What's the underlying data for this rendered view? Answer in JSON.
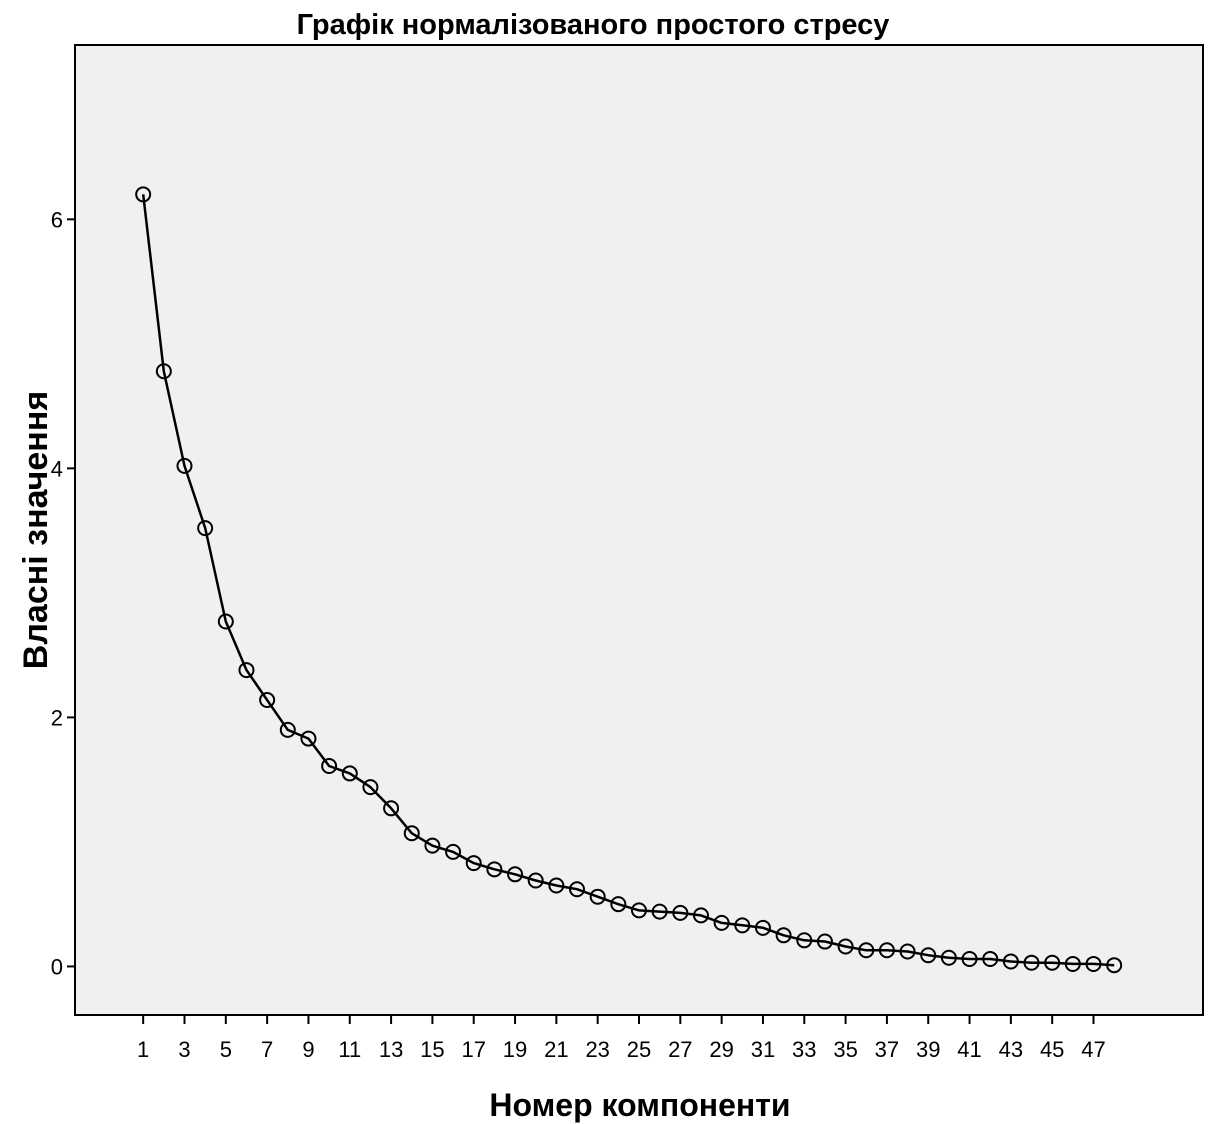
{
  "chart_data": {
    "type": "line",
    "title": "Графік нормалізованого простого стресу",
    "xlabel": "Номер компоненти",
    "ylabel": "Власні значення",
    "x_tick_labels": [
      "1",
      "3",
      "5",
      "7",
      "9",
      "11",
      "13",
      "15",
      "17",
      "19",
      "21",
      "23",
      "25",
      "27",
      "29",
      "31",
      "33",
      "35",
      "37",
      "39",
      "41",
      "43",
      "45",
      "47"
    ],
    "y_tick_labels": [
      "0",
      "2",
      "4",
      "6"
    ],
    "y_ticks": [
      0,
      2,
      4,
      6
    ],
    "xlim": [
      -2.3,
      52.3
    ],
    "ylim": [
      -0.39,
      7.4
    ],
    "grid": false,
    "markers": "open-circle",
    "colors": {
      "plot_background": "#f0f0f0",
      "line": "#000000"
    },
    "series": [
      {
        "x": [
          1,
          2,
          3,
          4,
          5,
          6,
          7,
          8,
          9,
          10,
          11,
          12,
          13,
          14,
          15,
          16,
          17,
          18,
          19,
          20,
          21,
          22,
          23,
          24,
          25,
          26,
          27,
          28,
          29,
          30,
          31,
          32,
          33,
          34,
          35,
          36,
          37,
          38,
          39,
          40,
          41,
          42,
          43,
          44,
          45,
          46,
          47,
          48
        ],
        "values": [
          6.2,
          4.78,
          4.02,
          3.52,
          2.77,
          2.38,
          2.14,
          1.9,
          1.83,
          1.61,
          1.55,
          1.44,
          1.27,
          1.07,
          0.97,
          0.92,
          0.83,
          0.78,
          0.74,
          0.69,
          0.65,
          0.62,
          0.56,
          0.5,
          0.45,
          0.44,
          0.43,
          0.41,
          0.35,
          0.33,
          0.31,
          0.25,
          0.21,
          0.2,
          0.16,
          0.13,
          0.13,
          0.12,
          0.09,
          0.07,
          0.06,
          0.06,
          0.04,
          0.03,
          0.03,
          0.02,
          0.02,
          0.01
        ]
      }
    ]
  }
}
